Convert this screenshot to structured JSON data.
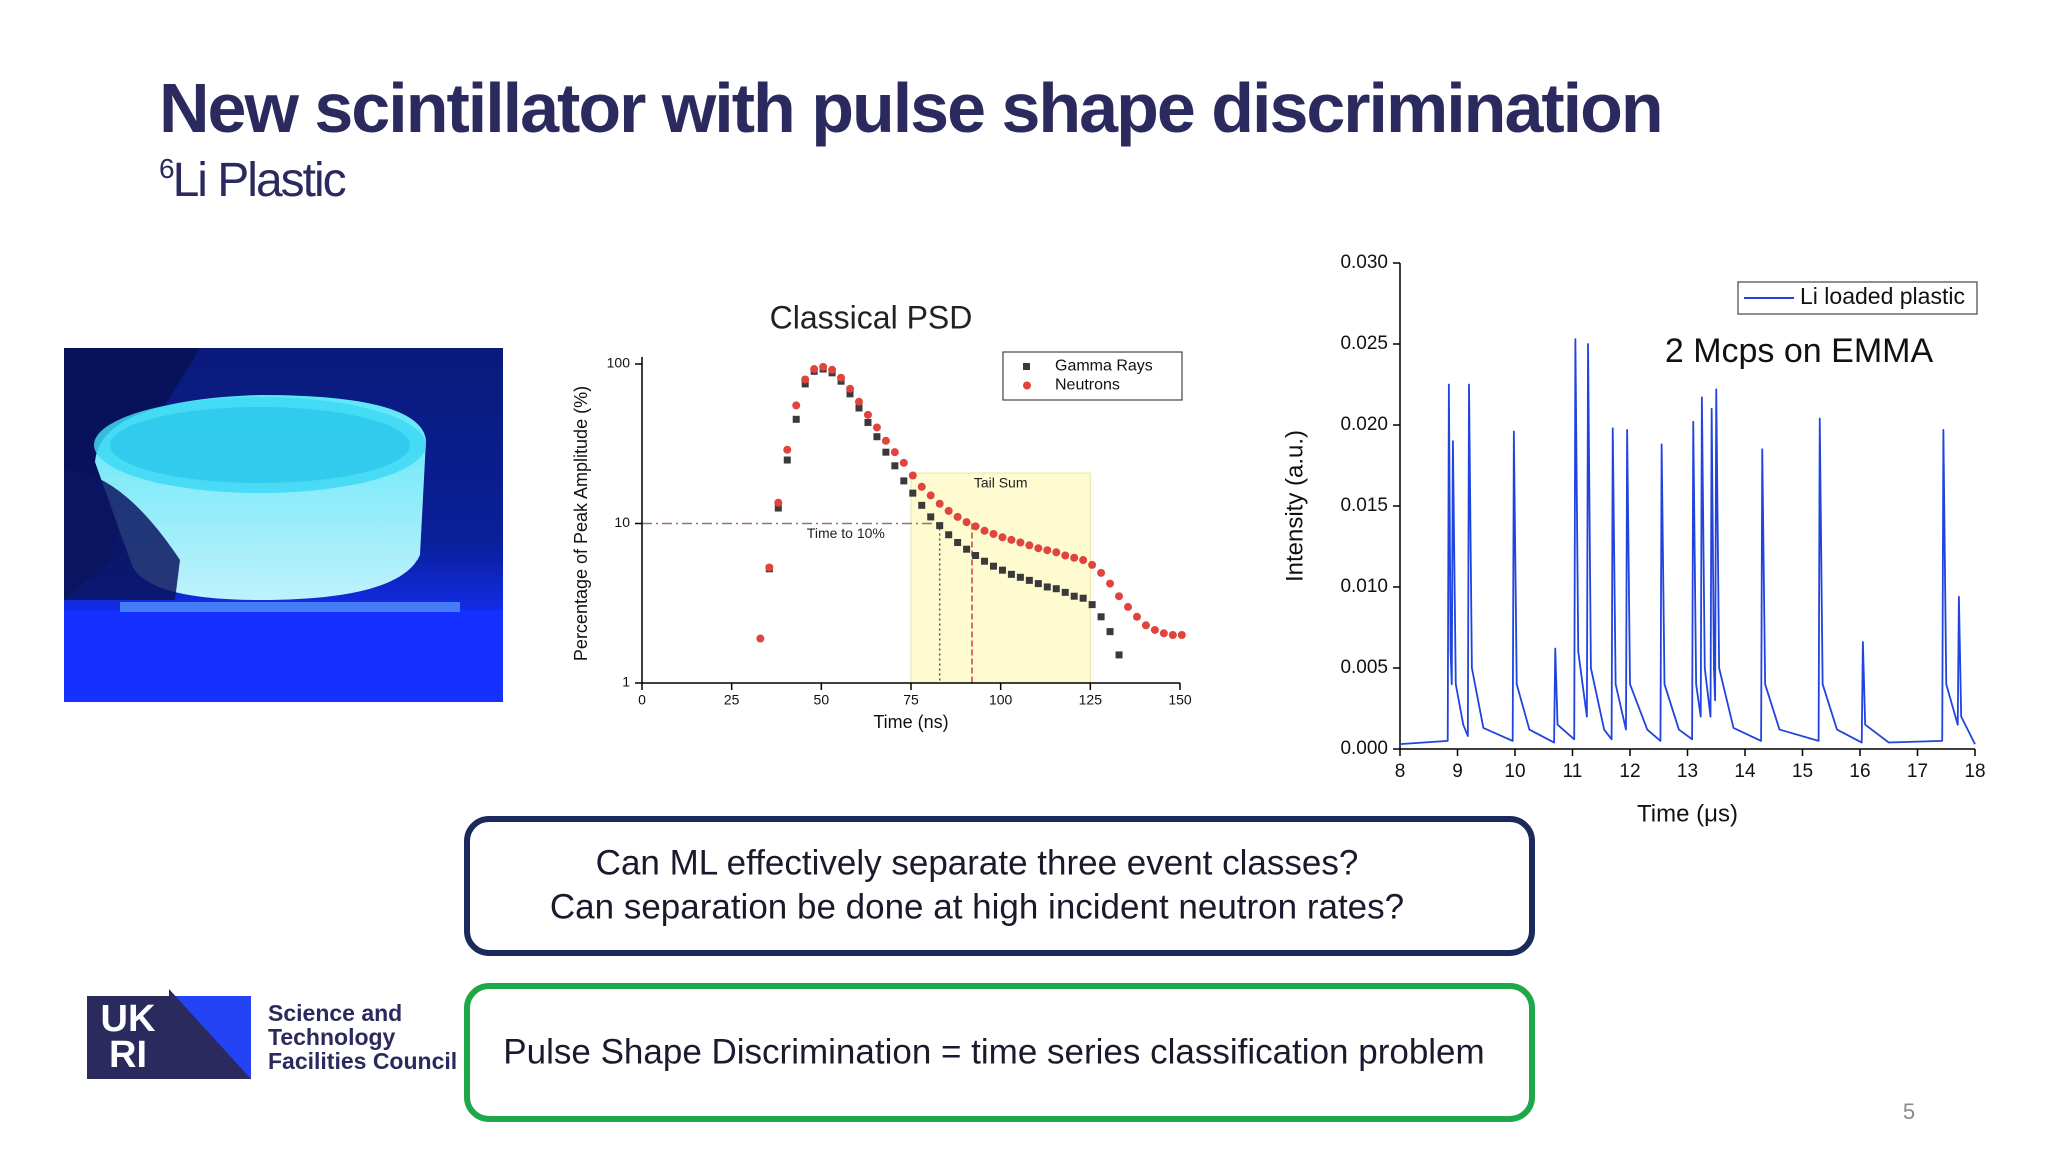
{
  "title": "New scintillator with pulse shape discrimination",
  "subtitle": {
    "superscript": "6",
    "text": "Li Plastic"
  },
  "questions": [
    "Can ML effectively separate three event classes?",
    "Can separation be done at high incident neutron rates?"
  ],
  "statement": "Pulse Shape Discrimination = time series classification problem",
  "logo": {
    "mark": [
      "UK",
      "RI"
    ],
    "lines": [
      "Science and",
      "Technology",
      "Facilities Council"
    ]
  },
  "page_number": 5,
  "chart_data": [
    {
      "type": "scatter",
      "title": "Classical PSD",
      "xlabel": "Time (ns)",
      "ylabel": "Percentage of Peak Amplitude (%)",
      "xlim": [
        0,
        150
      ],
      "xticks": [
        0,
        25,
        50,
        75,
        100,
        125,
        150
      ],
      "ylim": [
        1,
        100
      ],
      "yticks": [
        1,
        10,
        100
      ],
      "log_y": true,
      "legend": "upper right",
      "shaded_region": {
        "label": "Tail Sum",
        "x": [
          75,
          125
        ]
      },
      "threshold": {
        "label": "Time to 10%",
        "y": 10,
        "x": [
          83,
          92
        ]
      },
      "series": [
        {
          "name": "Gamma Rays",
          "color": "#3a3a3a",
          "marker": "square",
          "x": [
            35.5,
            38,
            40.5,
            43,
            45.5,
            48,
            50.5,
            53,
            55.5,
            58,
            60.5,
            63,
            65.5,
            68,
            70.5,
            73,
            75.5,
            78,
            80.5,
            83,
            85.5,
            88,
            90.5,
            93,
            95.5,
            98,
            100.5,
            103,
            105.5,
            108,
            110.5,
            113,
            115.5,
            118,
            120.5,
            123,
            125.5,
            128,
            130.5,
            133
          ],
          "values": [
            5.2,
            12.5,
            25,
            45,
            75,
            90,
            93,
            88,
            78,
            65,
            53,
            43,
            35,
            28,
            23,
            18.5,
            15.5,
            13,
            11,
            9.7,
            8.5,
            7.6,
            6.9,
            6.3,
            5.8,
            5.4,
            5.1,
            4.8,
            4.6,
            4.4,
            4.2,
            4.0,
            3.9,
            3.7,
            3.5,
            3.4,
            3.1,
            2.6,
            2.1,
            1.5
          ]
        },
        {
          "name": "Neutrons",
          "color": "#e0443c",
          "marker": "circle",
          "x": [
            33,
            35.5,
            38,
            40.5,
            43,
            45.5,
            48,
            50.5,
            53,
            55.5,
            58,
            60.5,
            63,
            65.5,
            68,
            70.5,
            73,
            75.5,
            78,
            80.5,
            83,
            85.5,
            88,
            90.5,
            93,
            95.5,
            98,
            100.5,
            103,
            105.5,
            108,
            110.5,
            113,
            115.5,
            118,
            120.5,
            123,
            125.5,
            128,
            130.5,
            133,
            135.5,
            138,
            140.5,
            143,
            145.5,
            148,
            150.5
          ],
          "values": [
            1.9,
            5.3,
            13.5,
            29,
            55,
            80,
            93,
            96,
            92,
            82,
            70,
            58,
            48,
            40,
            33,
            28,
            24,
            20,
            17,
            15,
            13.3,
            12,
            11,
            10.2,
            9.6,
            9.0,
            8.6,
            8.2,
            7.9,
            7.6,
            7.3,
            7.0,
            6.8,
            6.6,
            6.3,
            6.1,
            5.9,
            5.5,
            4.9,
            4.2,
            3.5,
            3.0,
            2.6,
            2.3,
            2.15,
            2.05,
            2.0,
            2.0
          ]
        }
      ]
    },
    {
      "type": "line",
      "xlabel": "Time (μs)",
      "ylabel": "Intensity (a.u.)",
      "annotation": "2 Mcps on EMMA",
      "xlim": [
        8,
        18
      ],
      "xticks": [
        8,
        9,
        10,
        11,
        12,
        13,
        14,
        15,
        16,
        17,
        18
      ],
      "ylim": [
        0,
        0.03
      ],
      "yticks": [
        {
          "value": 0,
          "label": "0.000"
        },
        0.005,
        {
          "value": 0.01,
          "label": "0.010"
        },
        0.015,
        {
          "value": 0.02,
          "label": "0.020"
        },
        0.025,
        {
          "value": 0.03,
          "label": "0.030"
        }
      ],
      "legend": "upper right",
      "series": [
        {
          "name": "Li loaded plastic",
          "color": "#2143e0",
          "x": [
            8.0,
            8.83,
            8.85,
            8.88,
            8.9,
            8.92,
            8.97,
            9.1,
            9.18,
            9.2,
            9.25,
            9.45,
            9.96,
            9.98,
            10.03,
            10.25,
            10.68,
            10.7,
            10.74,
            11.03,
            11.05,
            11.1,
            11.25,
            11.27,
            11.32,
            11.55,
            11.68,
            11.7,
            11.75,
            11.93,
            11.95,
            12.0,
            12.3,
            12.53,
            12.55,
            12.6,
            12.85,
            13.08,
            13.1,
            13.15,
            13.23,
            13.25,
            13.3,
            13.4,
            13.42,
            13.46,
            13.48,
            13.5,
            13.55,
            13.8,
            14.28,
            14.3,
            14.35,
            14.6,
            15.28,
            15.3,
            15.35,
            15.6,
            16.03,
            16.05,
            16.09,
            16.5,
            17.43,
            17.45,
            17.5,
            17.7,
            17.72,
            17.76,
            18.0
          ],
          "values": [
            0.0003,
            0.0005,
            0.0225,
            0.006,
            0.004,
            0.019,
            0.004,
            0.0015,
            0.0008,
            0.0225,
            0.005,
            0.0013,
            0.0005,
            0.0196,
            0.004,
            0.0012,
            0.0004,
            0.0062,
            0.0015,
            0.0006,
            0.0253,
            0.006,
            0.002,
            0.025,
            0.005,
            0.0012,
            0.0006,
            0.0198,
            0.004,
            0.0012,
            0.0197,
            0.004,
            0.0012,
            0.0005,
            0.0188,
            0.004,
            0.0012,
            0.0006,
            0.0202,
            0.004,
            0.002,
            0.0217,
            0.005,
            0.002,
            0.021,
            0.005,
            0.003,
            0.0222,
            0.005,
            0.0013,
            0.0005,
            0.0185,
            0.004,
            0.0012,
            0.0005,
            0.0204,
            0.004,
            0.0012,
            0.0004,
            0.0066,
            0.0015,
            0.0004,
            0.0005,
            0.0197,
            0.004,
            0.0015,
            0.0094,
            0.002,
            0.0003
          ]
        }
      ]
    }
  ]
}
